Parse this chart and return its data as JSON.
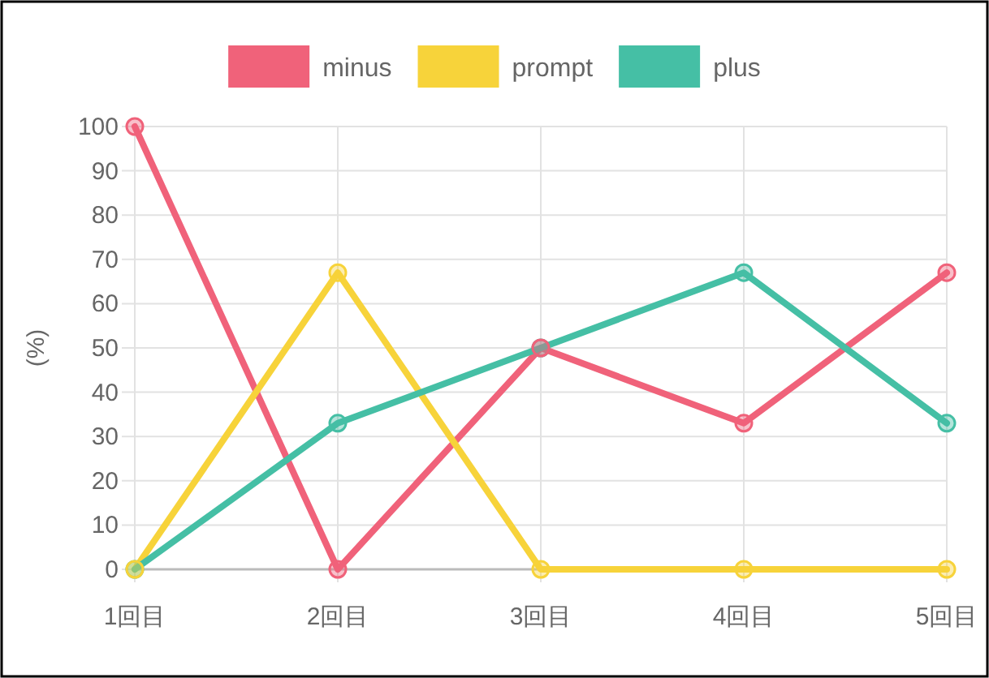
{
  "chart_data": {
    "type": "line",
    "ylabel": "(%)",
    "categories": [
      "1回目",
      "2回目",
      "3回目",
      "4回目",
      "5回目"
    ],
    "series": [
      {
        "name": "minus",
        "color": "#f0627a",
        "values": [
          100,
          0,
          50,
          33,
          67
        ]
      },
      {
        "name": "prompt",
        "color": "#f7d33a",
        "values": [
          0,
          67,
          0,
          0,
          0
        ]
      },
      {
        "name": "plus",
        "color": "#45bfa5",
        "values": [
          0,
          33,
          50,
          67,
          33
        ]
      }
    ],
    "ylim": [
      0,
      100
    ],
    "yticks": [
      0,
      10,
      20,
      30,
      40,
      50,
      60,
      70,
      80,
      90,
      100
    ],
    "grid": true,
    "legend": "top",
    "marker": "circle",
    "line_style": "solid"
  }
}
